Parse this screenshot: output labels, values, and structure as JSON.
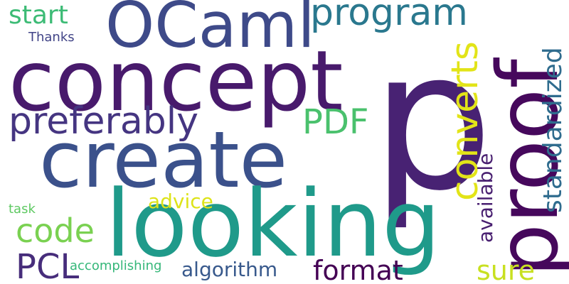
{
  "words": {
    "p": {
      "text": "p",
      "color": "#482273"
    },
    "proof": {
      "text": "proof",
      "color": "#46085c"
    },
    "concept": {
      "text": "concept",
      "color": "#481a6c"
    },
    "create": {
      "text": "create",
      "color": "#3b518b"
    },
    "looking": {
      "text": "looking",
      "color": "#1f9a8a"
    },
    "ocaml": {
      "text": "OCaml",
      "color": "#3e4a89"
    },
    "program": {
      "text": "program",
      "color": "#2a788e"
    },
    "preferably": {
      "text": "preferably",
      "color": "#453581"
    },
    "pdf": {
      "text": "PDF",
      "color": "#4ac16d"
    },
    "converts": {
      "text": "converts",
      "color": "#e2e418"
    },
    "standardized": {
      "text": "standardized",
      "color": "#2f6c8e"
    },
    "start": {
      "text": "start",
      "color": "#3cbb75"
    },
    "thanks": {
      "text": "Thanks",
      "color": "#414487"
    },
    "code": {
      "text": "code",
      "color": "#7ad151"
    },
    "advice": {
      "text": "advice",
      "color": "#dde318"
    },
    "available": {
      "text": "available",
      "color": "#481f70"
    },
    "pcl": {
      "text": "PCL",
      "color": "#472d7b"
    },
    "task": {
      "text": "task",
      "color": "#5ec962"
    },
    "accomplishing": {
      "text": "accomplishing",
      "color": "#35b779"
    },
    "algorithm": {
      "text": "algorithm",
      "color": "#38598c"
    },
    "format": {
      "text": "format",
      "color": "#440154"
    },
    "sure": {
      "text": "sure",
      "color": "#c8e020"
    }
  }
}
